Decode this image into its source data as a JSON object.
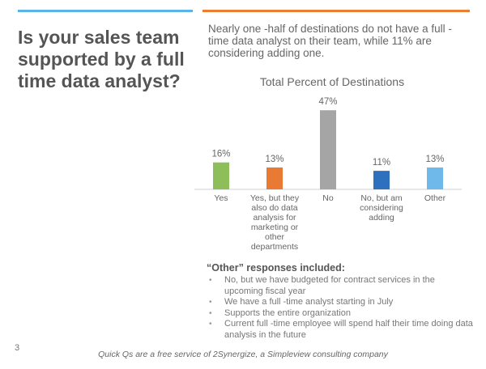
{
  "slide": {
    "title": "Is your sales team supported by a full time data analyst?",
    "intro": "Nearly one -half of destinations do not have a full - time data analyst on their team, while 11% are considering adding one.",
    "page_number": "3",
    "footer": "Quick Qs are a free service of 2Synergize, a Simpleview consulting company"
  },
  "colors": {
    "left_rule": "#5BB4E5",
    "right_rule": "#ED7D31"
  },
  "chart_data": {
    "type": "bar",
    "title": "Total Percent of Destinations",
    "categories": [
      "Yes",
      "Yes, but they also do data analysis for marketing or other departments",
      "No",
      "No, but am considering adding",
      "Other"
    ],
    "category_lines": [
      [
        "Yes"
      ],
      [
        "Yes, but they",
        "also do data",
        "analysis for",
        "marketing or",
        "other",
        "departments"
      ],
      [
        "No"
      ],
      [
        "No, but am",
        "considering",
        "adding"
      ],
      [
        "Other"
      ]
    ],
    "values": [
      16,
      13,
      47,
      11,
      13
    ],
    "value_labels": [
      "16%",
      "13%",
      "47%",
      "11%",
      "13%"
    ],
    "colors": [
      "#8DBE5A",
      "#E87A34",
      "#A5A5A5",
      "#2E6FBE",
      "#6EB8EA"
    ],
    "ylim": [
      0,
      50
    ],
    "grid": false,
    "legend": "none"
  },
  "notes": {
    "heading": "“Other” responses included:",
    "items": [
      "No, but we have budgeted for contract services in the upcoming fiscal year",
      "We have a full -time analyst starting in July",
      "Supports the entire organization",
      "Current full -time employee will spend half their time doing data analysis in the future"
    ]
  }
}
